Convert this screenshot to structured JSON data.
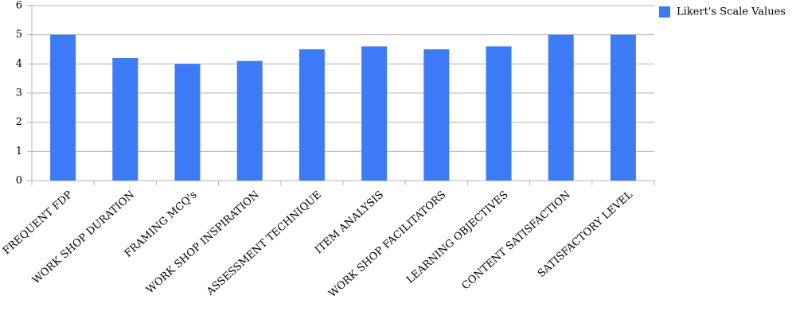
{
  "chart_data": {
    "type": "bar",
    "categories": [
      "FREQUENT FDP",
      "WORK SHOP DURATION",
      "FRAMING MCQ's",
      "WORK SHOP INSPIRATION",
      "ASSESSMENT TECHNIQUE",
      "ITEM ANALYSIS",
      "WORK SHOP FACILITATORS",
      "LEARNING OBJECTIVES",
      "CONTENT SATISFACTION",
      "SATISFACTORY LEVEL"
    ],
    "series": [
      {
        "name": "Likert's Scale Values",
        "color": "#3d7af5",
        "values": [
          5,
          4.2,
          4,
          4.1,
          4.5,
          4.6,
          4.5,
          4.6,
          5,
          5
        ]
      }
    ],
    "ylim": [
      0,
      6
    ],
    "yticks": [
      0,
      1,
      2,
      3,
      4,
      5,
      6
    ],
    "grid": true,
    "legend": "right"
  }
}
